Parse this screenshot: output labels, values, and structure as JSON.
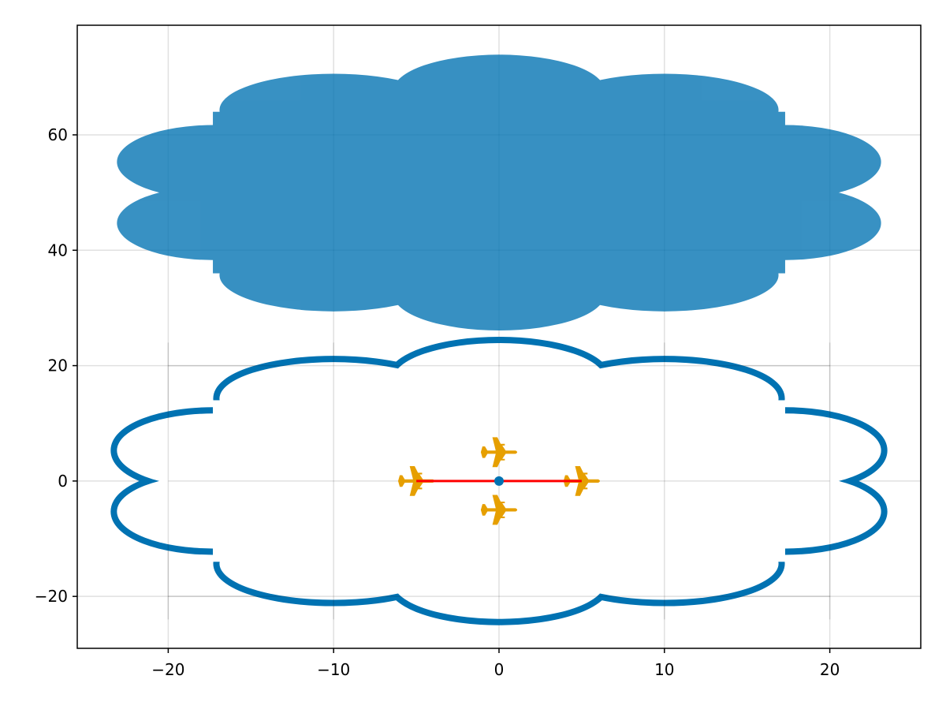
{
  "chart_data": {
    "type": "scatter",
    "title": "",
    "xlabel": "",
    "ylabel": "",
    "xlim": [
      -25.5,
      25.5
    ],
    "ylim": [
      -29,
      79
    ],
    "grid": true,
    "xticks": [
      -20,
      -10,
      0,
      10,
      20
    ],
    "yticks": [
      -20,
      0,
      20,
      40,
      60
    ],
    "xtick_labels": [
      "−20",
      "−10",
      "0",
      "10",
      "20"
    ],
    "ytick_labels": [
      "−20",
      "0",
      "20",
      "40",
      "60"
    ],
    "filled_cloud": {
      "color": "#0072b2",
      "alpha": 0.78,
      "lobes": [
        {
          "cx": 0,
          "cy": 67.6,
          "rx": 6.4,
          "ry": 6.3
        },
        {
          "cx": -10,
          "cy": 64.3,
          "rx": 6.9,
          "ry": 6.3
        },
        {
          "cx": 10,
          "cy": 64.3,
          "rx": 6.9,
          "ry": 6.3
        },
        {
          "cx": -17.3,
          "cy": 55.3,
          "rx": 5.8,
          "ry": 6.4
        },
        {
          "cx": 17.3,
          "cy": 55.3,
          "rx": 5.8,
          "ry": 6.4
        },
        {
          "cx": -17.3,
          "cy": 44.7,
          "rx": 5.8,
          "ry": 6.4
        },
        {
          "cx": 17.3,
          "cy": 44.7,
          "rx": 5.8,
          "ry": 6.4
        },
        {
          "cx": -10,
          "cy": 35.7,
          "rx": 6.9,
          "ry": 6.3
        },
        {
          "cx": 10,
          "cy": 35.7,
          "rx": 6.9,
          "ry": 6.3
        },
        {
          "cx": 0,
          "cy": 32.4,
          "rx": 6.4,
          "ry": 6.3
        }
      ]
    },
    "outline_cloud": {
      "color": "#0072b2",
      "lobes": [
        {
          "cx": 0,
          "cy": 17.6,
          "rx": 6.4,
          "ry": 6.3
        },
        {
          "cx": -10,
          "cy": 14.3,
          "rx": 6.9,
          "ry": 6.3
        },
        {
          "cx": 10,
          "cy": 14.3,
          "rx": 6.9,
          "ry": 6.3
        },
        {
          "cx": -17.3,
          "cy": 5.3,
          "rx": 5.8,
          "ry": 6.4
        },
        {
          "cx": 17.3,
          "cy": 5.3,
          "rx": 5.8,
          "ry": 6.4
        },
        {
          "cx": -17.3,
          "cy": -5.3,
          "rx": 5.8,
          "ry": 6.4
        },
        {
          "cx": 17.3,
          "cy": -5.3,
          "rx": 5.8,
          "ry": 6.4
        },
        {
          "cx": -10,
          "cy": -14.3,
          "rx": 6.9,
          "ry": 6.3
        },
        {
          "cx": 10,
          "cy": -14.3,
          "rx": 6.9,
          "ry": 6.3
        },
        {
          "cx": 0,
          "cy": -17.6,
          "rx": 6.4,
          "ry": 6.3
        }
      ]
    },
    "line": {
      "color": "#ff0000",
      "x": [
        -5,
        5
      ],
      "y": [
        0,
        0
      ]
    },
    "center_point": {
      "color": "#0072b2",
      "x": 0,
      "y": 0
    },
    "airplane_markers": {
      "color": "#e69f00",
      "icon": "airplane-icon",
      "points": [
        [
          -5,
          0
        ],
        [
          5,
          0
        ],
        [
          0,
          5
        ],
        [
          0,
          -5
        ]
      ]
    }
  }
}
